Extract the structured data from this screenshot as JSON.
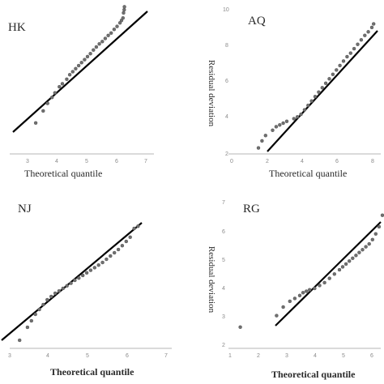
{
  "chart_data": [
    {
      "type": "scatter",
      "title": "HK",
      "xlabel": "Theoretical quantile",
      "ylabel": "",
      "xlim": [
        3,
        7
      ],
      "ylim": [
        3,
        7
      ],
      "xticks": [
        "3",
        "4",
        "5",
        "6",
        "7"
      ],
      "yticks": [],
      "reference_line": {
        "x": [
          3,
          6.3
        ],
        "y": [
          3,
          7
        ]
      },
      "points": {
        "x": [
          3.25,
          3.5,
          3.65,
          3.8,
          3.9,
          4.05,
          4.15,
          4.3,
          4.4,
          4.5,
          4.6,
          4.7,
          4.8,
          4.9,
          5.0,
          5.1,
          5.2,
          5.3,
          5.4,
          5.5,
          5.6,
          5.7,
          5.8,
          5.9,
          6.0,
          6.1,
          6.15,
          6.2,
          6.22,
          6.24,
          6.25
        ],
        "y": [
          3.3,
          3.7,
          3.95,
          4.15,
          4.3,
          4.5,
          4.6,
          4.75,
          4.9,
          5.0,
          5.1,
          5.2,
          5.3,
          5.4,
          5.5,
          5.6,
          5.72,
          5.82,
          5.92,
          6.0,
          6.1,
          6.2,
          6.28,
          6.4,
          6.5,
          6.62,
          6.7,
          6.78,
          6.95,
          7.05,
          7.15
        ]
      }
    },
    {
      "type": "scatter",
      "title": "AQ",
      "xlabel": "Theoretical quantile",
      "ylabel": "Residual deviation",
      "xlim": [
        0,
        8
      ],
      "ylim": [
        2,
        10
      ],
      "xticks": [
        "0",
        "2",
        "4",
        "6",
        "8"
      ],
      "yticks": [
        "2",
        "4",
        "6",
        "8",
        "10"
      ],
      "reference_line": {
        "x": [
          2,
          8
        ],
        "y": [
          2,
          9
        ]
      },
      "points": {
        "x": [
          1.6,
          1.8,
          2.0,
          2.4,
          2.6,
          2.8,
          3.0,
          3.2,
          3.6,
          3.8,
          4.0,
          4.2,
          4.4,
          4.6,
          4.8,
          5.0,
          5.2,
          5.4,
          5.6,
          5.8,
          6.0,
          6.2,
          6.4,
          6.6,
          6.8,
          7.0,
          7.2,
          7.4,
          7.6,
          7.8,
          8.0,
          8.1
        ],
        "y": [
          2.2,
          2.6,
          2.9,
          3.2,
          3.4,
          3.5,
          3.6,
          3.7,
          3.85,
          3.95,
          4.1,
          4.35,
          4.6,
          4.85,
          5.1,
          5.35,
          5.6,
          5.85,
          6.1,
          6.35,
          6.6,
          6.85,
          7.1,
          7.35,
          7.55,
          7.8,
          8.05,
          8.3,
          8.55,
          8.75,
          9.0,
          9.2
        ]
      }
    },
    {
      "type": "scatter",
      "title": "NJ",
      "xlabel": "Theoretical quantile",
      "ylabel": "",
      "xlim": [
        3,
        7
      ],
      "ylim": [
        3,
        7
      ],
      "xticks": [
        "3",
        "4",
        "5",
        "6",
        "7"
      ],
      "yticks": [],
      "reference_line": {
        "x": [
          3,
          6.5
        ],
        "y": [
          3,
          7
        ]
      },
      "points": {
        "x": [
          3.25,
          3.45,
          3.55,
          3.65,
          3.75,
          3.85,
          3.95,
          4.05,
          4.15,
          4.25,
          4.35,
          4.45,
          4.55,
          4.65,
          4.75,
          4.85,
          4.95,
          5.05,
          5.15,
          5.25,
          5.35,
          5.45,
          5.55,
          5.65,
          5.75,
          5.85,
          5.95,
          6.05,
          6.15,
          6.25
        ],
        "y": [
          3.1,
          3.5,
          3.7,
          3.9,
          4.05,
          4.2,
          4.35,
          4.45,
          4.55,
          4.62,
          4.7,
          4.78,
          4.86,
          4.95,
          5.02,
          5.1,
          5.18,
          5.26,
          5.34,
          5.42,
          5.5,
          5.6,
          5.7,
          5.8,
          5.9,
          6.02,
          6.15,
          6.28,
          6.55,
          6.62
        ]
      }
    },
    {
      "type": "scatter",
      "title": "RG",
      "xlabel": "Theoretical quantile",
      "ylabel": "Residual deviation",
      "xlim": [
        1,
        6
      ],
      "ylim": [
        2,
        7
      ],
      "xticks": [
        "1",
        "2",
        "3",
        "4",
        "5",
        "6"
      ],
      "yticks": [
        "2",
        "3",
        "4",
        "5",
        "6",
        "7"
      ],
      "reference_line": {
        "x": [
          2.6,
          6
        ],
        "y": [
          2.6,
          6.2
        ]
      },
      "points": {
        "x": [
          1.7,
          2.8,
          3.0,
          3.2,
          3.35,
          3.5,
          3.6,
          3.7,
          3.8,
          3.95,
          4.1,
          4.25,
          4.4,
          4.55,
          4.7,
          4.8,
          4.9,
          5.0,
          5.1,
          5.2,
          5.3,
          5.4,
          5.5,
          5.6,
          5.7,
          5.8,
          5.9,
          6.0
        ],
        "y": [
          2.6,
          3.0,
          3.3,
          3.5,
          3.6,
          3.7,
          3.8,
          3.85,
          3.9,
          3.95,
          4.05,
          4.15,
          4.3,
          4.45,
          4.6,
          4.7,
          4.8,
          4.9,
          5.0,
          5.1,
          5.2,
          5.3,
          5.4,
          5.5,
          5.65,
          5.85,
          6.1,
          6.5
        ]
      }
    }
  ]
}
